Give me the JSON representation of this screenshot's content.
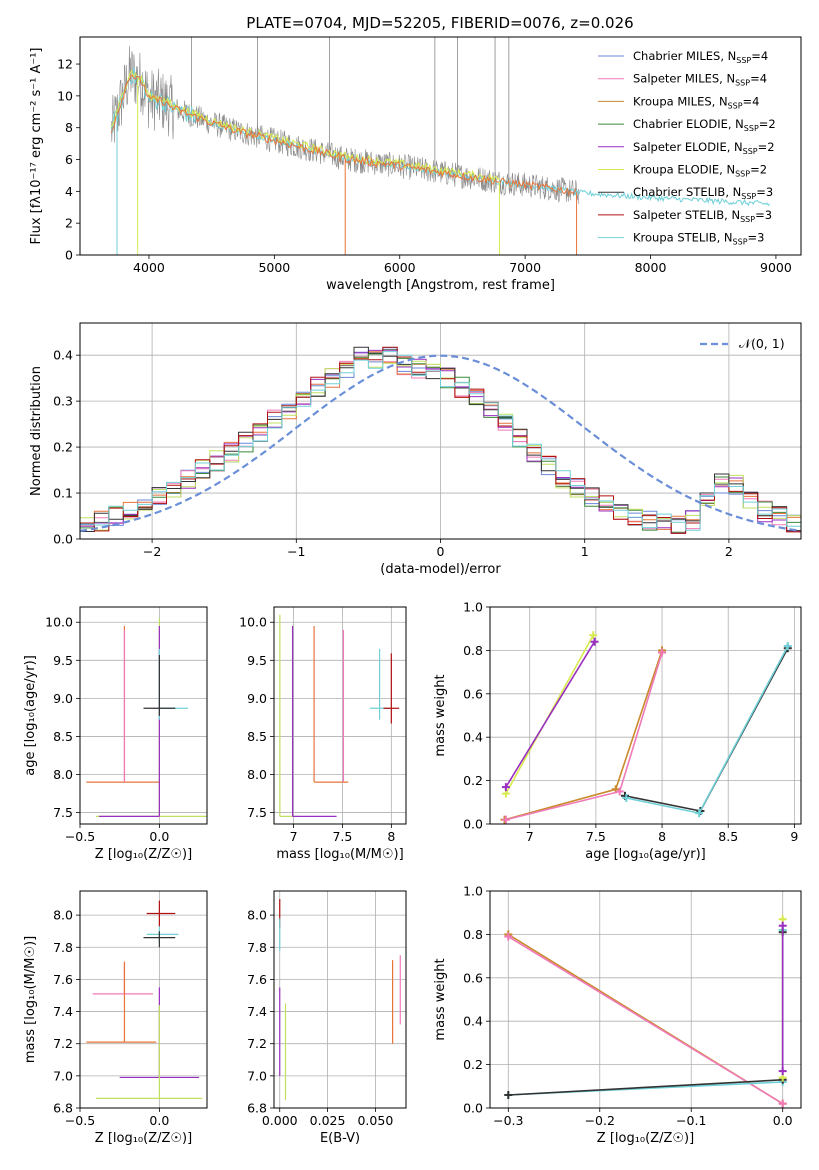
{
  "title": "PLATE=0704, MJD=52205, FIBERID=0076, z=0.026",
  "colors": {
    "chabrier_miles": "#6a86d8",
    "salpeter_miles": "#f07ab8",
    "kroupa_miles": "#c88a2a",
    "chabrier_elodie": "#3a8a3a",
    "salpeter_elodie": "#9a2ec0",
    "kroupa_elodie": "#d8ea50",
    "chabrier_stelib": "#333333",
    "salpeter_stelib": "#b01010",
    "kroupa_stelib": "#70d0d8",
    "data": "#888888",
    "normal": "#6a8fd8",
    "grid": "#b0b0b0",
    "extra": "#e8743a",
    "extra2": "#c0e060"
  },
  "legend_spectrum": [
    {
      "label": "Chabrier MILES, N",
      "sub": "SSP",
      "post": "=4",
      "color": "chabrier_miles"
    },
    {
      "label": "Salpeter MILES, N",
      "sub": "SSP",
      "post": "=4",
      "color": "salpeter_miles"
    },
    {
      "label": "Kroupa MILES, N",
      "sub": "SSP",
      "post": "=4",
      "color": "kroupa_miles"
    },
    {
      "label": "Chabrier ELODIE, N",
      "sub": "SSP",
      "post": "=2",
      "color": "chabrier_elodie"
    },
    {
      "label": "Salpeter ELODIE, N",
      "sub": "SSP",
      "post": "=2",
      "color": "salpeter_elodie"
    },
    {
      "label": "Kroupa ELODIE, N",
      "sub": "SSP",
      "post": "=2",
      "color": "kroupa_elodie"
    },
    {
      "label": "Chabrier STELIB, N",
      "sub": "SSP",
      "post": "=3",
      "color": "chabrier_stelib"
    },
    {
      "label": "Salpeter STELIB, N",
      "sub": "SSP",
      "post": "=3",
      "color": "salpeter_stelib"
    },
    {
      "label": "Kroupa STELIB, N",
      "sub": "SSP",
      "post": "=3",
      "color": "kroupa_stelib"
    }
  ],
  "legend_residual": "𝒩(0, 1)",
  "chart_data": [
    {
      "id": "spectrum",
      "type": "line",
      "title": "PLATE=0704, MJD=52205, FIBERID=0076, z=0.026",
      "xlabel": "wavelength [Angstrom, rest frame]",
      "ylabel": "Flux [fλ10⁻¹⁷ erg cm⁻² s⁻¹ A⁻¹]",
      "xlim": [
        3450,
        9200
      ],
      "ylim": [
        0,
        13.7
      ],
      "xticks": [
        4000,
        5000,
        6000,
        7000,
        8000,
        9000
      ],
      "yticks": [
        0,
        2,
        4,
        6,
        8,
        10,
        12
      ],
      "grid": false,
      "legend_position": "upper-right",
      "continuum": {
        "x": [
          3700,
          3760,
          3850,
          3950,
          4000,
          4100,
          4200,
          4300,
          4500,
          4700,
          5000,
          5300,
          5600,
          6000,
          6400,
          6800,
          7200,
          7450,
          8000,
          8500,
          8950
        ],
        "y": [
          7.8,
          9.2,
          11.4,
          10.8,
          9.8,
          9.7,
          9.2,
          8.9,
          8.3,
          7.8,
          7.2,
          6.6,
          6.0,
          5.6,
          5.1,
          4.6,
          4.2,
          3.9,
          3.6,
          3.4,
          3.2
        ]
      }
    },
    {
      "id": "residuals",
      "type": "histogram",
      "xlabel": "(data-model)/error",
      "ylabel": "Normed distribution",
      "xlim": [
        -2.5,
        2.5
      ],
      "ylim": [
        0,
        0.47
      ],
      "xticks": [
        -2,
        -1,
        0,
        1,
        2
      ],
      "yticks": [
        0.0,
        0.1,
        0.2,
        0.3,
        0.4
      ],
      "xtick_labels": [
        "−2",
        "−1",
        "0",
        "1",
        "2"
      ],
      "grid": true,
      "legend_position": "upper-right",
      "bin_edges_start": -2.5,
      "bin_width": 0.1,
      "hist": [
        0.03,
        0.04,
        0.05,
        0.06,
        0.08,
        0.09,
        0.11,
        0.13,
        0.15,
        0.17,
        0.19,
        0.21,
        0.23,
        0.26,
        0.28,
        0.3,
        0.33,
        0.35,
        0.37,
        0.4,
        0.39,
        0.4,
        0.38,
        0.37,
        0.36,
        0.35,
        0.33,
        0.31,
        0.28,
        0.25,
        0.22,
        0.19,
        0.16,
        0.13,
        0.11,
        0.09,
        0.08,
        0.06,
        0.05,
        0.04,
        0.035,
        0.03,
        0.04,
        0.08,
        0.12,
        0.12,
        0.08,
        0.06,
        0.05,
        0.03
      ],
      "normal": {
        "mu": 0,
        "sigma": 1
      }
    },
    {
      "id": "age_vs_Z",
      "type": "errorbar",
      "xlabel": "Z [log₁₀(Z/Z☉)]",
      "ylabel": "age  [log₁₀(age/yr)]",
      "xlim": [
        -0.5,
        0.3
      ],
      "ylim": [
        7.35,
        10.2
      ],
      "xticks": [
        -0.5,
        0.0
      ],
      "xtick_labels": [
        "−0.5",
        "0.0"
      ],
      "yticks": [
        7.5,
        8.0,
        8.5,
        9.0,
        9.5,
        10.0
      ],
      "grid": true
    },
    {
      "id": "age_vs_mass",
      "type": "errorbar",
      "xlabel": "mass [log₁₀(M/M☉)]",
      "ylabel": "",
      "xlim": [
        6.8,
        8.15
      ],
      "ylim": [
        7.35,
        10.2
      ],
      "xticks": [
        7.0,
        7.5,
        8.0
      ],
      "yticks": [
        7.5,
        8.0,
        8.5,
        9.0,
        9.5,
        10.0
      ],
      "grid": true
    },
    {
      "id": "weight_vs_age",
      "type": "line",
      "xlabel": "age  [log₁₀(age/yr)]",
      "ylabel": "mass weight",
      "xlim": [
        6.7,
        9.05
      ],
      "ylim": [
        0.0,
        1.0
      ],
      "xticks": [
        7.0,
        7.5,
        8.0,
        8.5,
        9.0
      ],
      "yticks": [
        0.0,
        0.2,
        0.4,
        0.6,
        0.8,
        1.0
      ],
      "grid": true,
      "series": [
        {
          "color": "kroupa_elodie",
          "x": [
            6.82,
            7.48
          ],
          "y": [
            0.14,
            0.87
          ]
        },
        {
          "color": "salpeter_elodie",
          "x": [
            6.82,
            7.49
          ],
          "y": [
            0.17,
            0.84
          ]
        },
        {
          "color": "kroupa_miles",
          "x": [
            6.81,
            7.65,
            8.0
          ],
          "y": [
            0.02,
            0.16,
            0.8
          ]
        },
        {
          "color": "salpeter_miles",
          "x": [
            6.82,
            7.68,
            8.0
          ],
          "y": [
            0.02,
            0.15,
            0.79
          ]
        },
        {
          "color": "chabrier_stelib",
          "x": [
            7.72,
            8.29,
            8.95
          ],
          "y": [
            0.13,
            0.06,
            0.81
          ]
        },
        {
          "color": "kroupa_stelib",
          "x": [
            7.73,
            8.28,
            8.95
          ],
          "y": [
            0.12,
            0.05,
            0.82
          ]
        }
      ]
    },
    {
      "id": "mass_vs_Z",
      "type": "errorbar",
      "xlabel": "Z [log₁₀(Z/Z☉)]",
      "ylabel": "mass [log₁₀(M/M☉)]",
      "xlim": [
        -0.5,
        0.3
      ],
      "ylim": [
        6.8,
        8.15
      ],
      "xticks": [
        -0.5,
        0.0
      ],
      "xtick_labels": [
        "−0.5",
        "0.0"
      ],
      "yticks": [
        6.8,
        7.0,
        7.2,
        7.4,
        7.6,
        7.8,
        8.0
      ],
      "grid": true
    },
    {
      "id": "mass_vs_ebv",
      "type": "errorbar",
      "xlabel": "E(B-V)",
      "ylabel": "",
      "xlim": [
        -0.003,
        0.066
      ],
      "ylim": [
        6.8,
        8.15
      ],
      "xticks": [
        0.0,
        0.025,
        0.05
      ],
      "xtick_labels": [
        "0.000",
        "0.025",
        "0.050"
      ],
      "yticks": [
        6.8,
        7.0,
        7.2,
        7.4,
        7.6,
        7.8,
        8.0
      ],
      "grid": true
    },
    {
      "id": "weight_vs_Z",
      "type": "line",
      "xlabel": "Z [log₁₀(Z/Z☉)]",
      "ylabel": "mass weight",
      "xlim": [
        -0.32,
        0.02
      ],
      "ylim": [
        0.0,
        1.0
      ],
      "xticks": [
        -0.3,
        -0.2,
        -0.1,
        0.0
      ],
      "xtick_labels": [
        "−0.3",
        "−0.2",
        "−0.1",
        "0.0"
      ],
      "yticks": [
        0.0,
        0.2,
        0.4,
        0.6,
        0.8,
        1.0
      ],
      "grid": true,
      "series": [
        {
          "color": "kroupa_miles",
          "x": [
            -0.3,
            0.0
          ],
          "y": [
            0.8,
            0.02
          ]
        },
        {
          "color": "salpeter_miles",
          "x": [
            -0.3,
            0.0
          ],
          "y": [
            0.79,
            0.02
          ]
        },
        {
          "color": "kroupa_stelib",
          "x": [
            -0.3,
            0.0,
            0.0
          ],
          "y": [
            0.06,
            0.12,
            0.82
          ]
        },
        {
          "color": "chabrier_stelib",
          "x": [
            -0.3,
            0.0,
            0.0
          ],
          "y": [
            0.06,
            0.13,
            0.81
          ]
        },
        {
          "color": "kroupa_elodie",
          "x": [
            0.0,
            0.0
          ],
          "y": [
            0.14,
            0.87
          ]
        },
        {
          "color": "salpeter_elodie",
          "x": [
            0.0,
            0.0
          ],
          "y": [
            0.17,
            0.84
          ]
        }
      ]
    }
  ]
}
